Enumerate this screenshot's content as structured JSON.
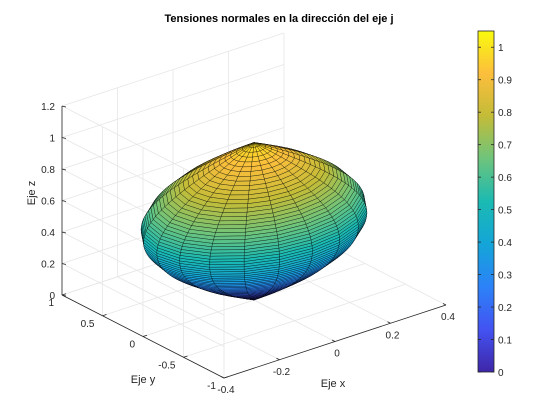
{
  "chart_data": {
    "type": "surface",
    "title": "Tensiones normales en la dirección del eje j",
    "xlabel": "Eje x",
    "ylabel": "Eje y",
    "zlabel": "Eje z",
    "xlim": [
      -0.4,
      0.4
    ],
    "ylim": [
      -1,
      1
    ],
    "zlim": [
      0,
      1.2
    ],
    "x_ticks": [
      "-0.4",
      "-0.2",
      "0",
      "0.2",
      "0.4"
    ],
    "y_ticks": [
      "-1",
      "-0.5",
      "0",
      "0.5",
      "1"
    ],
    "z_ticks": [
      "0",
      "0.2",
      "0.4",
      "0.6",
      "0.8",
      "1",
      "1.2"
    ],
    "grid": true,
    "colormap": "parula",
    "colorbar": {
      "limits": [
        0,
        1.05
      ],
      "ticks": [
        "0",
        "0.1",
        "0.2",
        "0.3",
        "0.4",
        "0.5",
        "0.6",
        "0.7",
        "0.8",
        "0.9",
        "1"
      ]
    },
    "surface": {
      "shape": "lens",
      "z_range": [
        0,
        1
      ],
      "max_radius_x": 0.35,
      "max_radius_y": 0.72,
      "theta_lines": 20,
      "z_lines": 60
    }
  },
  "colors": {
    "axis": "#262626",
    "grid": "#e6e6e6",
    "edge": "#000000",
    "title": "#000000"
  }
}
